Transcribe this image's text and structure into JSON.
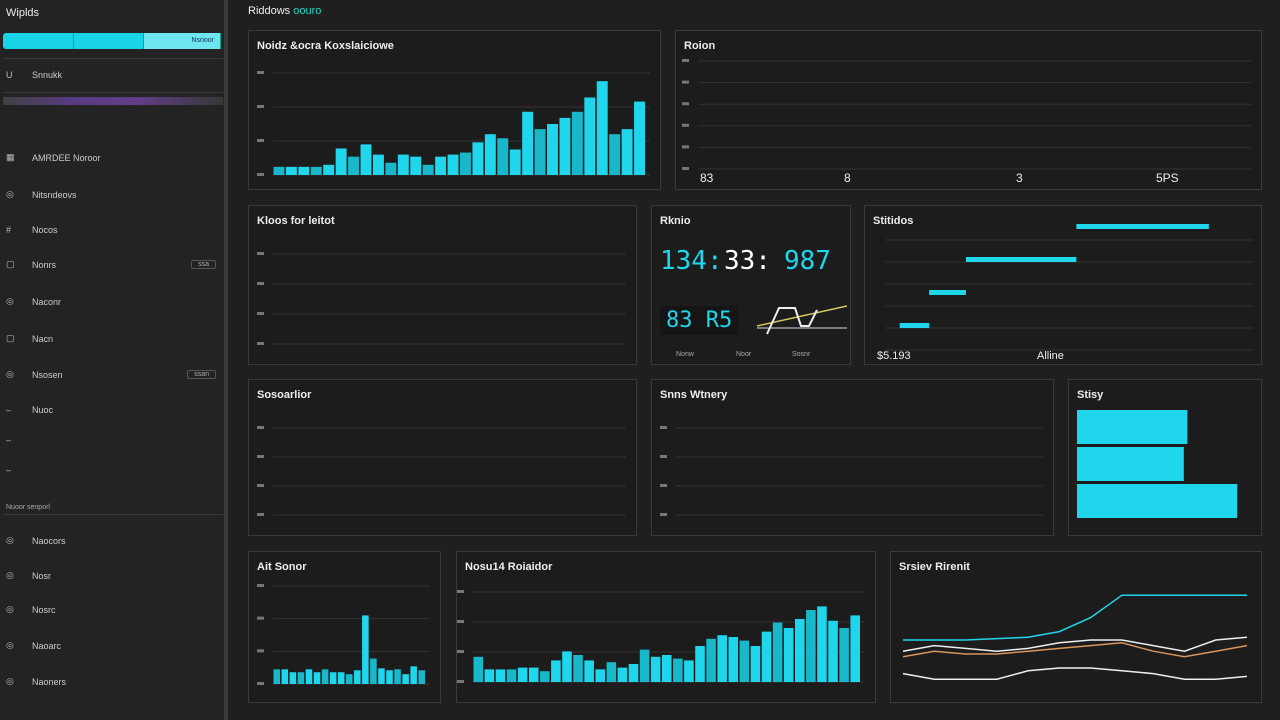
{
  "app": {
    "title": "Wiplds",
    "header": "Riddows",
    "header_accent": "oouro"
  },
  "sidebar": {
    "tabs": [
      "",
      "",
      "Nsrioor"
    ],
    "section_top": "Snnukk",
    "items": [
      {
        "icon": "grid",
        "label": "AMRDEE Noroor",
        "badge": "",
        "y": 157
      },
      {
        "icon": "circle",
        "label": "Nitsndeovs",
        "badge": "",
        "y": 194
      },
      {
        "icon": "hash",
        "label": "Nocos",
        "badge": "",
        "y": 230
      },
      {
        "icon": "square",
        "label": "Nonrs",
        "badge": "ssa",
        "y": 264
      },
      {
        "icon": "circle",
        "label": "Naconr",
        "badge": "",
        "y": 301
      },
      {
        "icon": "square",
        "label": "Nacn",
        "badge": "",
        "y": 338
      },
      {
        "icon": "circle",
        "label": "Nsosen",
        "badge": "ssan",
        "y": 374
      },
      {
        "icon": "minus",
        "label": "Nuoc",
        "badge": "",
        "y": 410
      },
      {
        "icon": "minus",
        "label": "",
        "badge": "",
        "y": 440
      },
      {
        "icon": "minus",
        "label": "",
        "badge": "",
        "y": 470
      }
    ],
    "section_bottom": "Nuoor senporl",
    "items_bottom": [
      {
        "icon": "circle",
        "label": "Naocors",
        "y": 540
      },
      {
        "icon": "circle",
        "label": "Nosr",
        "y": 575
      },
      {
        "icon": "circle",
        "label": "Nosrc",
        "y": 609
      },
      {
        "icon": "circle",
        "label": "Naoarc",
        "y": 645
      },
      {
        "icon": "circle",
        "label": "Naoners",
        "y": 681
      }
    ]
  },
  "colors": {
    "accent": "#1fd6ec",
    "bg": "#1f1f1f",
    "panel": "#1c1c1c",
    "line_orange": "#d9945a"
  },
  "panels": {
    "a": {
      "title": "Noidz &ocra Koxslaiciowe"
    },
    "b": {
      "title": "Roion",
      "labels": [
        "83",
        "8",
        "3",
        "5PS"
      ]
    },
    "c": {
      "title": "Kloos for leitot"
    },
    "d": {
      "title": "Rknio",
      "v1": "134:",
      "v2": "33:",
      "v3": "987",
      "v4": "83 R5",
      "labels": [
        "Nonw",
        "Noor",
        "Sosnr"
      ]
    },
    "e": {
      "title": "Stitidos",
      "labels": [
        "$5.193",
        "Alline"
      ]
    },
    "f": {
      "title": "Sosoarlior"
    },
    "g": {
      "title": "Snns Wtnery"
    },
    "h": {
      "title": "Stisy"
    },
    "i": {
      "title": "Ait Sonor"
    },
    "j": {
      "title": "Nosu14 Roiaidor"
    },
    "k": {
      "title": "Srsiev Rirenit"
    }
  },
  "chart_data": [
    {
      "type": "bar",
      "panel": "a",
      "values": [
        8,
        8,
        8,
        8,
        10,
        26,
        18,
        30,
        20,
        12,
        20,
        18,
        10,
        18,
        20,
        22,
        32,
        40,
        36,
        25,
        62,
        45,
        50,
        56,
        62,
        76,
        92,
        40,
        45,
        72
      ]
    },
    {
      "type": "bar",
      "panel": "i",
      "values": [
        15,
        15,
        12,
        12,
        15,
        12,
        15,
        12,
        12,
        10,
        14,
        70,
        26,
        16,
        14,
        15,
        10,
        18,
        14
      ]
    },
    {
      "type": "bar",
      "panel": "j",
      "values": [
        28,
        14,
        14,
        14,
        16,
        16,
        12,
        24,
        34,
        30,
        24,
        14,
        22,
        16,
        20,
        36,
        28,
        30,
        26,
        24,
        40,
        48,
        52,
        50,
        46,
        40,
        56,
        66,
        60,
        70,
        80,
        84,
        68,
        60,
        74
      ]
    },
    {
      "type": "bar",
      "orientation": "horizontal",
      "panel": "h",
      "values": [
        62,
        60,
        90
      ]
    },
    {
      "type": "gantt",
      "panel": "e",
      "segments": [
        [
          0.04,
          0.12
        ],
        [
          0.12,
          0.22
        ],
        [
          0.22,
          0.52
        ],
        [
          0.52,
          0.88
        ]
      ]
    },
    {
      "type": "line",
      "panel": "k",
      "series": [
        {
          "color": "#1fd6ec",
          "values": [
            30,
            30,
            30,
            31,
            32,
            36,
            46,
            62,
            62,
            62,
            62,
            62
          ]
        },
        {
          "color": "#eeeeee",
          "values": [
            22,
            26,
            24,
            22,
            24,
            28,
            30,
            30,
            26,
            22,
            30,
            32
          ]
        },
        {
          "color": "#d9945a",
          "values": [
            18,
            22,
            20,
            20,
            22,
            24,
            26,
            28,
            22,
            18,
            22,
            26
          ]
        },
        {
          "color": "#eeeeee",
          "values": [
            6,
            2,
            2,
            2,
            8,
            10,
            10,
            8,
            6,
            2,
            2,
            4
          ]
        }
      ]
    }
  ]
}
